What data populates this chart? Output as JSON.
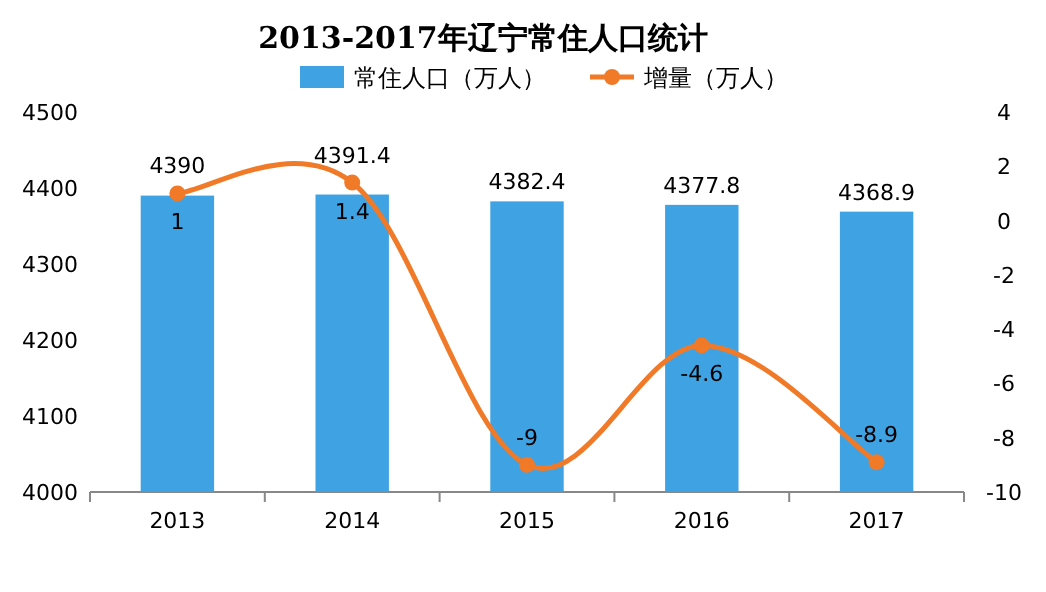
{
  "chart_data": {
    "type": "bar",
    "title": "2013-2017年辽宁常住人口统计",
    "categories": [
      "2013",
      "2014",
      "2015",
      "2016",
      "2017"
    ],
    "series": [
      {
        "name": "常住人口（万人）",
        "color": "#3ea2e3",
        "values": [
          4390,
          4391.4,
          4382.4,
          4377.8,
          4368.9
        ]
      },
      {
        "name": "增量（万人）",
        "type": "line",
        "axis": "y2",
        "color": "#f07a28",
        "values": [
          1,
          1.4,
          -9,
          -4.6,
          -8.9
        ]
      }
    ],
    "ylim": [
      4000,
      4500
    ],
    "yticks": [
      4000,
      4100,
      4200,
      4300,
      4400,
      4500
    ],
    "y2lim": [
      -10,
      4
    ],
    "y2ticks": [
      -10,
      -8,
      -6,
      -4,
      -2,
      0,
      2,
      4
    ],
    "marker": "circle",
    "data_labels": true,
    "legend": "top",
    "grid": false
  }
}
